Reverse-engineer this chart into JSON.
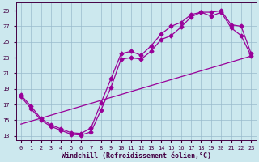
{
  "xlabel": "Windchill (Refroidissement éolien,°C)",
  "bg_color": "#cce8ee",
  "line_color": "#990099",
  "grid_color": "#99bbcc",
  "xlim": [
    -0.5,
    23.5
  ],
  "ylim": [
    12.5,
    30.0
  ],
  "xticks": [
    0,
    1,
    2,
    3,
    4,
    5,
    6,
    7,
    8,
    9,
    10,
    11,
    12,
    13,
    14,
    15,
    16,
    17,
    18,
    19,
    20,
    21,
    22,
    23
  ],
  "yticks": [
    13,
    15,
    17,
    19,
    21,
    23,
    25,
    27,
    29
  ],
  "line1_x": [
    0,
    1,
    2,
    3,
    4,
    5,
    6,
    7,
    8,
    9,
    10,
    11,
    12,
    13,
    14,
    15,
    16,
    17,
    18,
    19,
    20,
    21,
    22,
    23
  ],
  "line1_y": [
    18.0,
    16.5,
    15.0,
    14.2,
    13.7,
    13.2,
    13.1,
    13.5,
    16.3,
    19.2,
    22.8,
    23.0,
    22.8,
    23.8,
    25.3,
    25.8,
    26.9,
    28.2,
    28.8,
    28.3,
    28.8,
    26.8,
    25.8,
    23.2
  ],
  "line2_x": [
    0,
    1,
    2,
    3,
    4,
    5,
    6,
    7,
    8,
    9,
    10,
    11,
    12,
    13,
    14,
    15,
    16,
    17,
    18,
    19,
    20,
    21,
    22,
    23
  ],
  "line2_y": [
    18.2,
    16.8,
    15.2,
    14.4,
    13.9,
    13.4,
    13.3,
    14.0,
    17.2,
    20.3,
    23.5,
    23.8,
    23.3,
    24.5,
    26.0,
    27.0,
    27.5,
    28.5,
    28.8,
    28.8,
    29.0,
    27.2,
    27.0,
    23.5
  ],
  "line3_x": [
    0,
    23
  ],
  "line3_y": [
    14.5,
    23.2
  ],
  "marker": "D",
  "markersize": 2.5,
  "linewidth": 0.9,
  "tick_fontsize": 5.0,
  "xlabel_fontsize": 6.0,
  "spine_color": "#440044"
}
